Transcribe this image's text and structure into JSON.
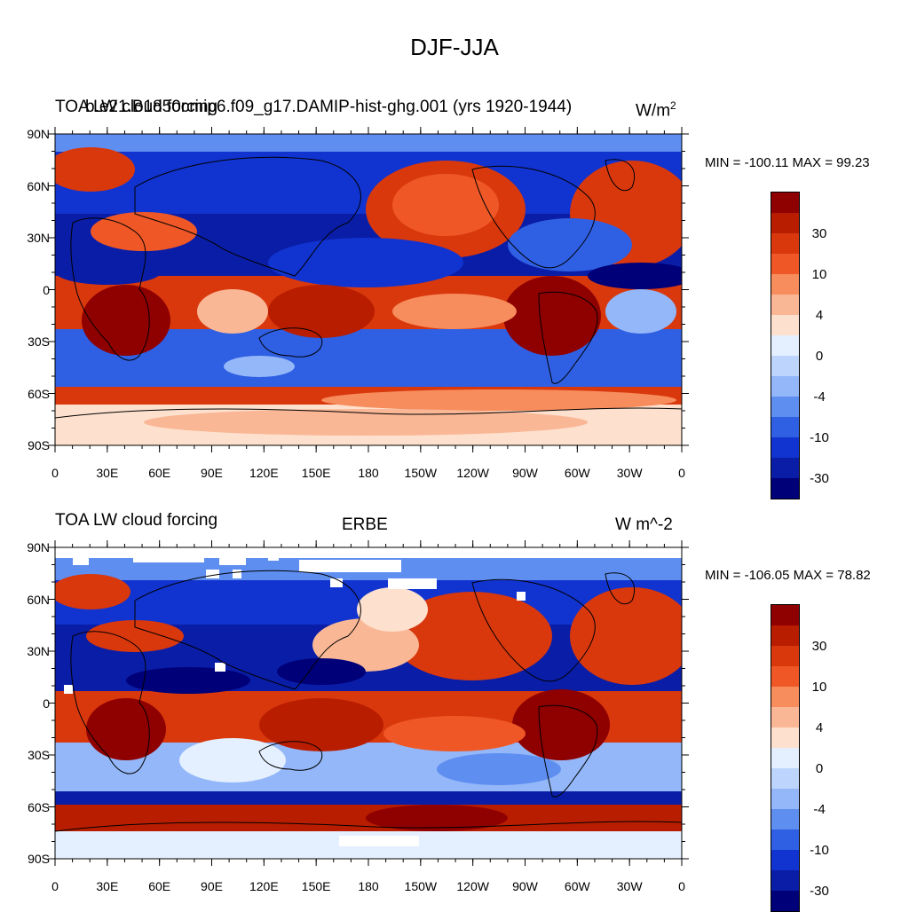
{
  "figure_title": "DJF-JJA",
  "colorbar_colors": [
    "#8f0000",
    "#b81d00",
    "#d9380d",
    "#ef5826",
    "#f78c5c",
    "#f9b796",
    "#fde0cd",
    "#e4efff",
    "#bdd5fc",
    "#93b7f8",
    "#5e8ef0",
    "#2f5fe3",
    "#1133cf",
    "#0a1da6",
    "#000078"
  ],
  "colorbar_labels": [
    "30",
    "10",
    "4",
    "0",
    "-4",
    "-10",
    "-30"
  ],
  "x_tick_labels": [
    "0",
    "30E",
    "60E",
    "90E",
    "120E",
    "150E",
    "180",
    "150W",
    "120W",
    "90W",
    "60W",
    "30W",
    "0"
  ],
  "y_tick_labels": [
    "90N",
    "60N",
    "30N",
    "0",
    "30S",
    "60S",
    "90S"
  ],
  "panels": [
    {
      "left_title": "TOA LW cloud forcing",
      "center_title": "b.e21.B1850cmip6.f09_g17.DAMIP-hist-ghg.001 (yrs 1920-1944)",
      "right_title": "W/m",
      "right_title_superscript": "2",
      "stats": "MIN = -100.11 MAX =  99.23"
    },
    {
      "left_title": "TOA LW cloud forcing",
      "center_title": "ERBE",
      "right_title": "W m^-2",
      "stats": "MIN = -106.05 MAX =  78.82"
    }
  ]
}
